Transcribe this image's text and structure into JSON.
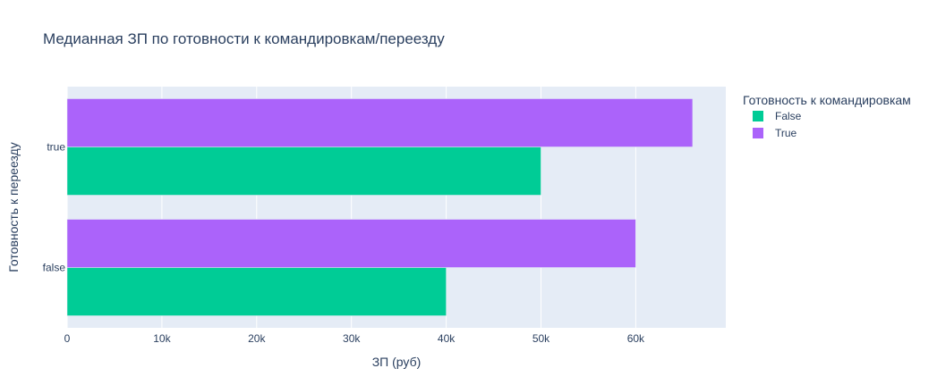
{
  "chart_data": {
    "type": "bar",
    "orientation": "horizontal",
    "barmode": "group",
    "title": "Медианная ЗП по готовности к командировкам/переезду",
    "xlabel": "ЗП (руб)",
    "ylabel": "Готовность к переезду",
    "categories": [
      "false",
      "true"
    ],
    "series": [
      {
        "name": "False",
        "color": "#00cc96",
        "values": [
          40000,
          50000
        ]
      },
      {
        "name": "True",
        "color": "#ab63fa",
        "values": [
          60000,
          66000
        ]
      }
    ],
    "xlim": [
      0,
      69500
    ],
    "x_ticks": [
      0,
      10000,
      20000,
      30000,
      40000,
      50000,
      60000
    ],
    "x_tick_labels": [
      "0",
      "10k",
      "20k",
      "30k",
      "40k",
      "50k",
      "60k"
    ],
    "grid": true,
    "plot_background": "#e5ecf6",
    "legend": {
      "title": "Готовность к командировкам",
      "position": "right"
    }
  }
}
